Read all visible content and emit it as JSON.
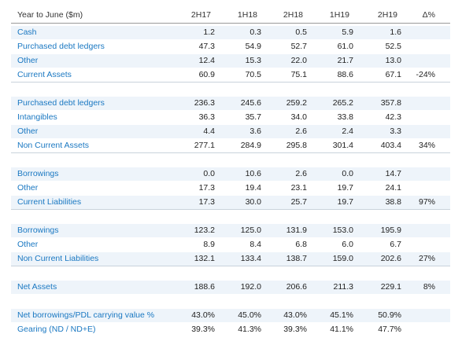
{
  "table": {
    "header": [
      "Year to June ($m)",
      "2H17",
      "1H18",
      "2H18",
      "1H19",
      "2H19",
      "Δ%"
    ],
    "groups": [
      {
        "rows": [
          {
            "label": "Cash",
            "values": [
              "1.2",
              "0.3",
              "0.5",
              "5.9",
              "1.6"
            ]
          },
          {
            "label": "Purchased debt ledgers",
            "values": [
              "47.3",
              "54.9",
              "52.7",
              "61.0",
              "52.5"
            ]
          },
          {
            "label": "Other",
            "values": [
              "12.4",
              "15.3",
              "22.0",
              "21.7",
              "13.0"
            ]
          },
          {
            "label": "Current Assets",
            "values": [
              "60.9",
              "70.5",
              "75.1",
              "88.6",
              "67.1"
            ],
            "change": "-24%"
          }
        ]
      },
      {
        "rows": [
          {
            "label": "Purchased debt ledgers",
            "values": [
              "236.3",
              "245.6",
              "259.2",
              "265.2",
              "357.8"
            ]
          },
          {
            "label": "Intangibles",
            "values": [
              "36.3",
              "35.7",
              "34.0",
              "33.8",
              "42.3"
            ]
          },
          {
            "label": "Other",
            "values": [
              "4.4",
              "3.6",
              "2.6",
              "2.4",
              "3.3"
            ]
          },
          {
            "label": "Non Current Assets",
            "values": [
              "277.1",
              "284.9",
              "295.8",
              "301.4",
              "403.4"
            ],
            "change": "34%"
          }
        ]
      },
      {
        "rows": [
          {
            "label": "Borrowings",
            "values": [
              "0.0",
              "10.6",
              "2.6",
              "0.0",
              "14.7"
            ]
          },
          {
            "label": "Other",
            "values": [
              "17.3",
              "19.4",
              "23.1",
              "19.7",
              "24.1"
            ]
          },
          {
            "label": "Current Liabilities",
            "values": [
              "17.3",
              "30.0",
              "25.7",
              "19.7",
              "38.8"
            ],
            "change": "97%"
          }
        ]
      },
      {
        "rows": [
          {
            "label": "Borrowings",
            "values": [
              "123.2",
              "125.0",
              "131.9",
              "153.0",
              "195.9"
            ]
          },
          {
            "label": "Other",
            "values": [
              "8.9",
              "8.4",
              "6.8",
              "6.0",
              "6.7"
            ]
          },
          {
            "label": "Non Current Liabilities",
            "values": [
              "132.1",
              "133.4",
              "138.7",
              "159.0",
              "202.6"
            ],
            "change": "27%"
          }
        ]
      },
      {
        "rows": [
          {
            "label": "Net Assets",
            "values": [
              "188.6",
              "192.0",
              "206.6",
              "211.3",
              "229.1"
            ],
            "change": "8%"
          }
        ]
      },
      {
        "rows": [
          {
            "label": "Net borrowings/PDL carrying value %",
            "values": [
              "43.0%",
              "45.0%",
              "43.0%",
              "45.1%",
              "50.9%"
            ]
          },
          {
            "label": "Gearing (ND / ND+E)",
            "values": [
              "39.3%",
              "41.3%",
              "39.3%",
              "41.1%",
              "47.7%"
            ]
          }
        ]
      }
    ]
  }
}
